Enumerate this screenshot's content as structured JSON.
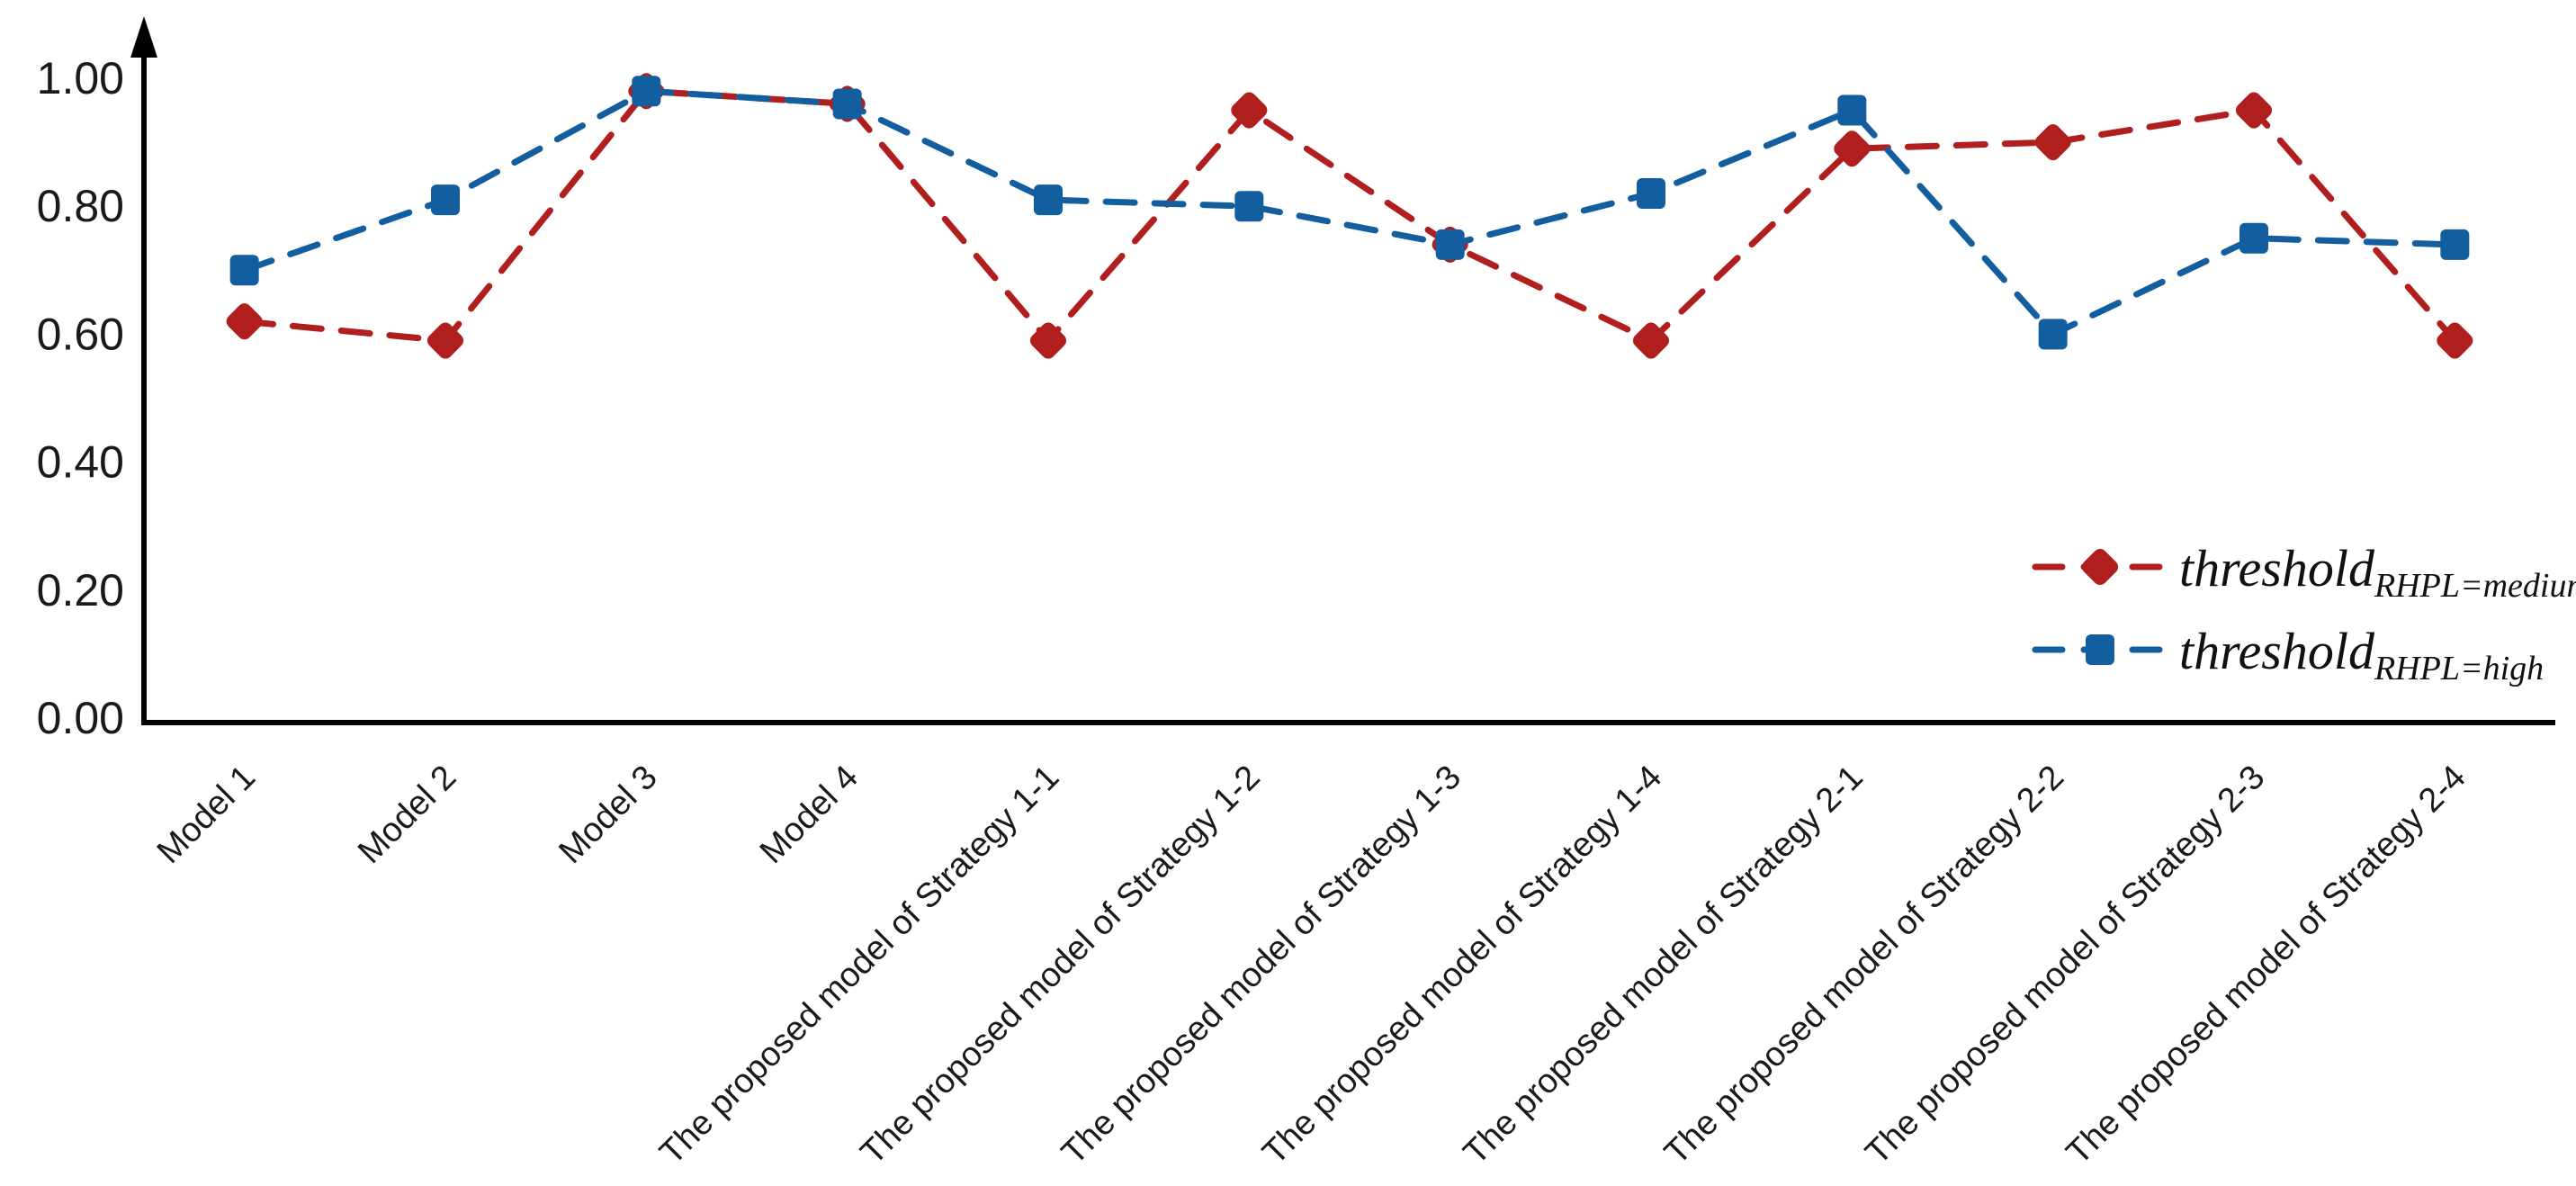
{
  "page": {
    "background": "#ffffff"
  },
  "chart_data": {
    "type": "line",
    "categories": [
      "Model 1",
      "Model 2",
      "Model 3",
      "Model 4",
      "The proposed model of Strategy 1-1",
      "The proposed model of Strategy 1-2",
      "The proposed model of Strategy 1-3",
      "The proposed model of Strategy 1-4",
      "The proposed model of Strategy 2-1",
      "The proposed model of Strategy 2-2",
      "The proposed model of Strategy 2-3",
      "The proposed model of Strategy 2-4"
    ],
    "series": [
      {
        "id": "threshold-medium",
        "label_main": "threshold",
        "label_sub": "RHPL=medium",
        "color": "#b01e1e",
        "marker": "diamond",
        "line_style": "dashed",
        "values": [
          0.62,
          0.59,
          0.98,
          0.96,
          0.59,
          0.95,
          0.74,
          0.59,
          0.89,
          0.9,
          0.95,
          0.59
        ]
      },
      {
        "id": "threshold-high",
        "label_main": "threshold",
        "label_sub": "RHPL=high",
        "color": "#135e9e",
        "marker": "square",
        "line_style": "dashed",
        "values": [
          0.7,
          0.81,
          0.98,
          0.96,
          0.81,
          0.8,
          0.74,
          0.82,
          0.95,
          0.6,
          0.75,
          0.74
        ]
      }
    ],
    "yticks": {
      "values": [
        0.0,
        0.2,
        0.4,
        0.6,
        0.8,
        1.0
      ],
      "labels": [
        "0.00",
        "0.20",
        "0.40",
        "0.60",
        "0.80",
        "1.00"
      ]
    },
    "ylim": [
      0,
      1.05
    ],
    "grid": false,
    "legend_position": "right-middle",
    "axis": {
      "color": "#000000",
      "y_axis_arrow": true,
      "x_axis_arrow": false
    },
    "text_color": "#1a1a1a"
  }
}
